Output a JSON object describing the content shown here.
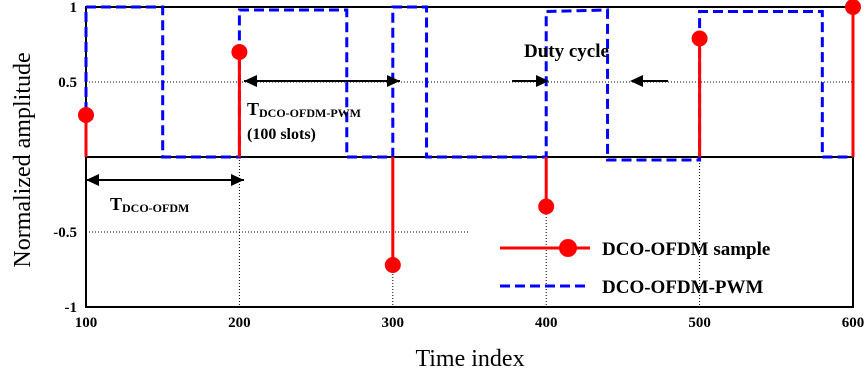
{
  "chart_data": {
    "type": "line",
    "xlabel": "Time index",
    "ylabel": "Normalized amplitude",
    "xlim": [
      100,
      600
    ],
    "ylim": [
      -1,
      1
    ],
    "x_ticks": [
      "100",
      "200",
      "300",
      "400",
      "500",
      "600"
    ],
    "y_ticks": [
      "1",
      "0.5",
      "-0.5",
      "-1"
    ],
    "series": [
      {
        "name": "DCO-OFDM sample",
        "style": "stem",
        "color": "#ff0000",
        "x": [
          100,
          200,
          300,
          400,
          500,
          600
        ],
        "values": [
          0.28,
          0.7,
          -0.72,
          -0.33,
          0.79,
          1.0
        ]
      },
      {
        "name": "DCO-OFDM-PWM",
        "style": "dashed",
        "color": "#0000ff",
        "x": [
          100,
          100,
          150,
          150,
          200,
          200,
          270,
          270,
          300,
          300,
          322,
          322,
          400,
          400,
          440,
          440,
          500,
          500,
          580,
          580,
          600
        ],
        "values": [
          0,
          1,
          1,
          0,
          0,
          0.98,
          0.98,
          0,
          0,
          1,
          1,
          0,
          0,
          0.97,
          0.98,
          -0.02,
          -0.02,
          0.97,
          0.97,
          0,
          0
        ]
      }
    ],
    "annotations": {
      "t_dco_ofdm": "T",
      "t_dco_ofdm_sub": "DCO-OFDM",
      "t_pwm": "T",
      "t_pwm_sub": "DCO-OFDM-PWM",
      "t_pwm_slots": "(100 slots)",
      "duty_cycle": "Duty cycle"
    },
    "legend": "bottom-right",
    "grid": "partial dotted reference lines"
  }
}
